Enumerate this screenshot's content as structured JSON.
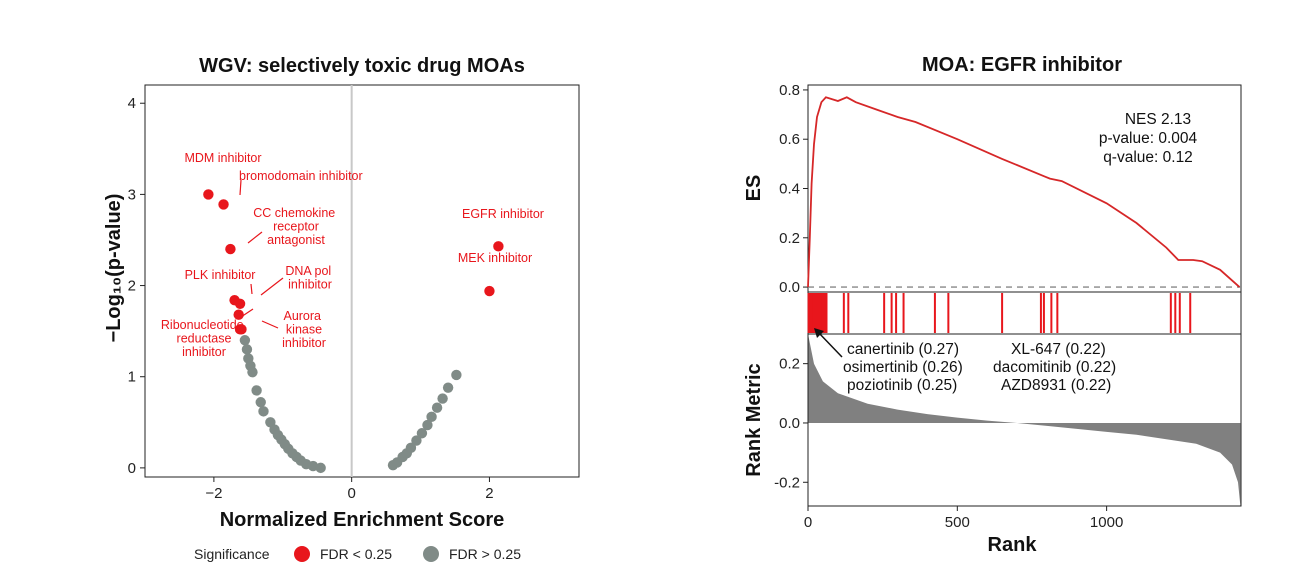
{
  "colors": {
    "significant": "#e8161c",
    "nonsignificant": "#808b87",
    "es_line": "#d62728",
    "hit_line": "#e8161c",
    "rank_fill": "#808080",
    "zero_line": "#c8c8c8"
  },
  "chart_data": [
    {
      "type": "scatter",
      "title": "WGV: selectively toxic drug MOAs",
      "xlabel": "Normalized Enrichment Score",
      "ylabel": "−Log₁₀(p-value)",
      "xlim": [
        -3.0,
        3.3
      ],
      "ylim": [
        -0.1,
        4.2
      ],
      "xticks": [
        -2,
        0,
        2
      ],
      "xtick_labels": [
        "−2",
        "0",
        "2"
      ],
      "yticks": [
        0,
        1,
        2,
        3,
        4
      ],
      "ytick_labels": [
        "0",
        "1",
        "2",
        "3",
        "4"
      ],
      "legend": {
        "title": "Significance",
        "position": "bottom",
        "entries": [
          {
            "label": "FDR < 0.25",
            "color_key": "significant"
          },
          {
            "label": "FDR > 0.25",
            "color_key": "nonsignificant"
          }
        ]
      },
      "significant_points": [
        {
          "label": "MDM inhibitor",
          "x": -2.08,
          "y": 3.0
        },
        {
          "label": "bromodomain inhibitor",
          "x": -1.86,
          "y": 2.89
        },
        {
          "label": "CC chemokine receptor antagonist",
          "x": -1.76,
          "y": 2.4
        },
        {
          "label": "EGFR inhibitor",
          "x": 2.13,
          "y": 2.43
        },
        {
          "label": "MEK inhibitor",
          "x": 2.0,
          "y": 1.94
        },
        {
          "label": "PLK inhibitor",
          "x": -1.7,
          "y": 1.84
        },
        {
          "label": "DNA pol inhibitor",
          "x": -1.62,
          "y": 1.8
        },
        {
          "label": "",
          "x": -1.64,
          "y": 1.68
        },
        {
          "label": "Ribonucleotide reductase inhibitor",
          "x": -1.62,
          "y": 1.52
        },
        {
          "label": "Aurora kinase inhibitor",
          "x": -1.6,
          "y": 1.52
        }
      ],
      "nonsignificant_points": [
        {
          "x": -1.55,
          "y": 1.4
        },
        {
          "x": -1.52,
          "y": 1.3
        },
        {
          "x": -1.5,
          "y": 1.2
        },
        {
          "x": -1.47,
          "y": 1.12
        },
        {
          "x": -1.44,
          "y": 1.05
        },
        {
          "x": -1.38,
          "y": 0.85
        },
        {
          "x": -1.32,
          "y": 0.72
        },
        {
          "x": -1.28,
          "y": 0.62
        },
        {
          "x": -1.18,
          "y": 0.5
        },
        {
          "x": -1.12,
          "y": 0.42
        },
        {
          "x": -1.07,
          "y": 0.36
        },
        {
          "x": -1.02,
          "y": 0.31
        },
        {
          "x": -0.97,
          "y": 0.26
        },
        {
          "x": -0.92,
          "y": 0.21
        },
        {
          "x": -0.86,
          "y": 0.16
        },
        {
          "x": -0.8,
          "y": 0.12
        },
        {
          "x": -0.74,
          "y": 0.08
        },
        {
          "x": -0.66,
          "y": 0.04
        },
        {
          "x": -0.56,
          "y": 0.02
        },
        {
          "x": -0.45,
          "y": 0.0
        },
        {
          "x": 0.6,
          "y": 0.03
        },
        {
          "x": 0.66,
          "y": 0.06
        },
        {
          "x": 0.74,
          "y": 0.12
        },
        {
          "x": 0.8,
          "y": 0.16
        },
        {
          "x": 0.86,
          "y": 0.22
        },
        {
          "x": 0.94,
          "y": 0.3
        },
        {
          "x": 1.02,
          "y": 0.38
        },
        {
          "x": 1.1,
          "y": 0.47
        },
        {
          "x": 1.16,
          "y": 0.56
        },
        {
          "x": 1.24,
          "y": 0.66
        },
        {
          "x": 1.32,
          "y": 0.76
        },
        {
          "x": 1.4,
          "y": 0.88
        },
        {
          "x": 1.52,
          "y": 1.02
        }
      ]
    },
    {
      "type": "line",
      "title": "MOA: EGFR inhibitor",
      "xlabel": "Rank",
      "ylabel_es": "ES",
      "ylabel_rank": "Rank Metric",
      "xlim": [
        0,
        1450
      ],
      "xticks": [
        0,
        500,
        1000
      ],
      "xtick_labels": [
        "0",
        "500",
        "1000"
      ],
      "es_ylim": [
        -0.02,
        0.82
      ],
      "es_yticks": [
        0.0,
        0.2,
        0.4,
        0.6,
        0.8
      ],
      "es_ytick_labels": [
        "0.0",
        "0.2",
        "0.4",
        "0.6",
        "0.8"
      ],
      "rank_ylim": [
        -0.28,
        0.3
      ],
      "rank_yticks": [
        -0.2,
        0.0,
        0.2
      ],
      "rank_ytick_labels": [
        "-0.2",
        "0.0",
        "0.2"
      ],
      "stats": [
        "NES 2.13",
        "p-value: 0.004",
        "q-value: 0.12"
      ],
      "es_curve": [
        [
          0,
          0.0
        ],
        [
          6,
          0.2
        ],
        [
          12,
          0.42
        ],
        [
          20,
          0.58
        ],
        [
          30,
          0.69
        ],
        [
          45,
          0.75
        ],
        [
          60,
          0.77
        ],
        [
          100,
          0.755
        ],
        [
          130,
          0.77
        ],
        [
          160,
          0.75
        ],
        [
          230,
          0.72
        ],
        [
          300,
          0.69
        ],
        [
          360,
          0.67
        ],
        [
          500,
          0.6
        ],
        [
          650,
          0.52
        ],
        [
          790,
          0.45
        ],
        [
          810,
          0.44
        ],
        [
          850,
          0.43
        ],
        [
          1000,
          0.34
        ],
        [
          1100,
          0.26
        ],
        [
          1200,
          0.16
        ],
        [
          1240,
          0.11
        ],
        [
          1290,
          0.11
        ],
        [
          1320,
          0.105
        ],
        [
          1380,
          0.07
        ],
        [
          1445,
          0.0
        ]
      ],
      "hits": [
        2,
        5,
        8,
        11,
        14,
        17,
        20,
        23,
        26,
        29,
        32,
        35,
        38,
        41,
        44,
        47,
        50,
        53,
        56,
        59,
        62,
        120,
        135,
        255,
        280,
        295,
        320,
        425,
        470,
        650,
        780,
        790,
        815,
        835,
        1215,
        1230,
        1245,
        1280
      ],
      "rank_metric": [
        [
          0,
          0.3
        ],
        [
          20,
          0.2
        ],
        [
          50,
          0.14
        ],
        [
          100,
          0.1
        ],
        [
          200,
          0.065
        ],
        [
          300,
          0.045
        ],
        [
          400,
          0.03
        ],
        [
          500,
          0.018
        ],
        [
          600,
          0.008
        ],
        [
          700,
          0.0
        ],
        [
          800,
          -0.01
        ],
        [
          900,
          -0.02
        ],
        [
          1000,
          -0.03
        ],
        [
          1100,
          -0.04
        ],
        [
          1200,
          -0.055
        ],
        [
          1300,
          -0.07
        ],
        [
          1380,
          -0.1
        ],
        [
          1420,
          -0.14
        ],
        [
          1440,
          -0.2
        ],
        [
          1448,
          -0.28
        ]
      ],
      "top_drugs": {
        "left": [
          "canertinib (0.27)",
          "osimertinib (0.26)",
          "poziotinib (0.25)"
        ],
        "right": [
          "XL-647 (0.22)",
          "dacomitinib (0.22)",
          "AZD8931 (0.22)"
        ]
      }
    }
  ]
}
